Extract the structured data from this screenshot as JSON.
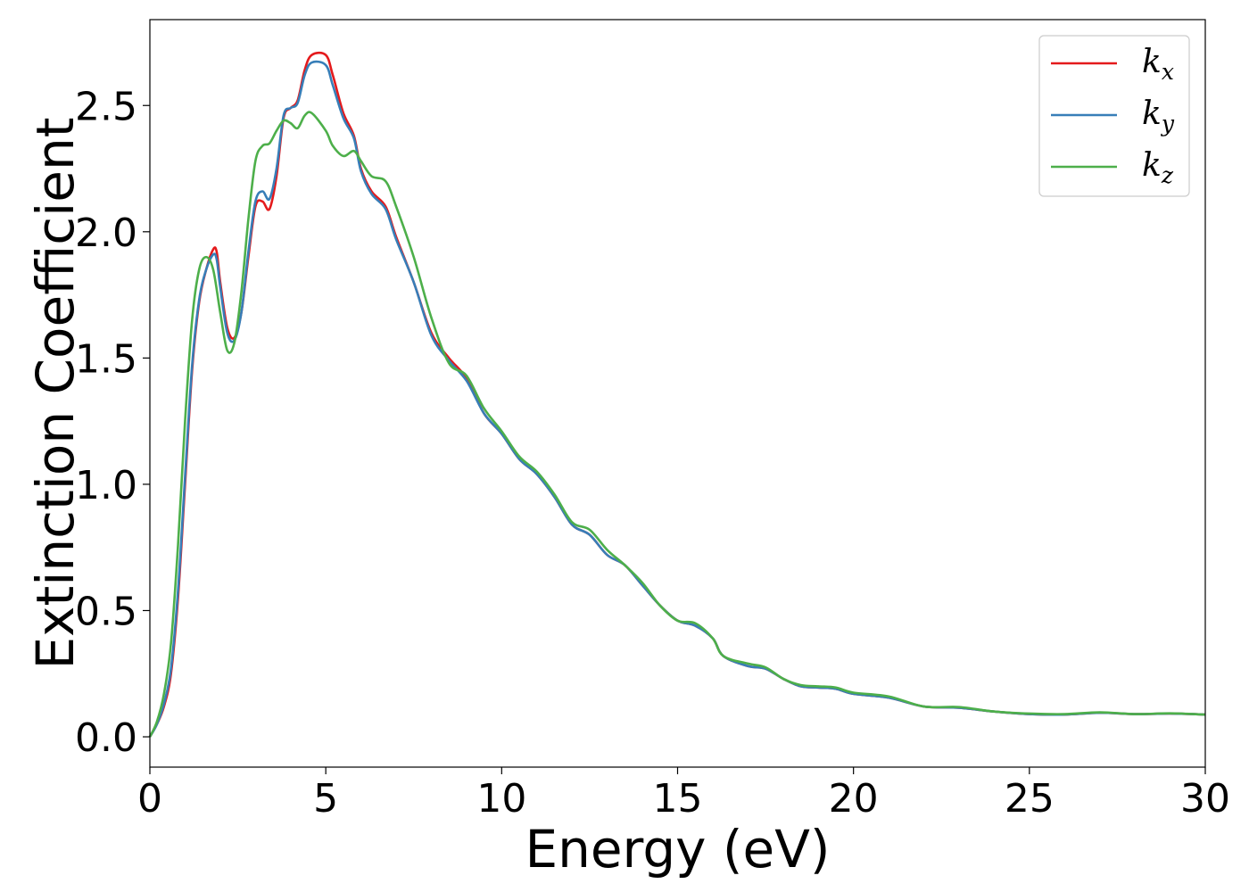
{
  "chart_data": {
    "type": "line",
    "xlabel": "Energy (eV)",
    "ylabel": "Extinction Coefficient",
    "xlim": [
      0,
      30
    ],
    "ylim": [
      -0.12,
      2.84
    ],
    "xticks": [
      0,
      5,
      10,
      15,
      20,
      25,
      30
    ],
    "yticks": [
      0.0,
      0.5,
      1.0,
      1.5,
      2.0,
      2.5
    ],
    "xtick_labels": [
      "0",
      "5",
      "10",
      "15",
      "20",
      "25",
      "30"
    ],
    "ytick_labels": [
      "0.0",
      "0.5",
      "1.0",
      "1.5",
      "2.0",
      "2.5"
    ],
    "grid": false,
    "legend_position": "top-right",
    "series": [
      {
        "name": "k_x",
        "label_main": "k",
        "label_sub": "x",
        "color": "#e41a1c",
        "points": [
          [
            0,
            0.0
          ],
          [
            0.2,
            0.05
          ],
          [
            0.4,
            0.12
          ],
          [
            0.6,
            0.25
          ],
          [
            0.8,
            0.55
          ],
          [
            1.0,
            1.0
          ],
          [
            1.2,
            1.45
          ],
          [
            1.4,
            1.72
          ],
          [
            1.6,
            1.85
          ],
          [
            1.8,
            1.93
          ],
          [
            1.9,
            1.92
          ],
          [
            2.0,
            1.8
          ],
          [
            2.2,
            1.62
          ],
          [
            2.4,
            1.58
          ],
          [
            2.6,
            1.68
          ],
          [
            2.8,
            1.9
          ],
          [
            3.0,
            2.1
          ],
          [
            3.2,
            2.12
          ],
          [
            3.4,
            2.09
          ],
          [
            3.6,
            2.22
          ],
          [
            3.8,
            2.45
          ],
          [
            4.0,
            2.49
          ],
          [
            4.2,
            2.52
          ],
          [
            4.4,
            2.64
          ],
          [
            4.6,
            2.7
          ],
          [
            5.0,
            2.7
          ],
          [
            5.2,
            2.62
          ],
          [
            5.5,
            2.47
          ],
          [
            5.8,
            2.38
          ],
          [
            6.0,
            2.25
          ],
          [
            6.3,
            2.16
          ],
          [
            6.7,
            2.1
          ],
          [
            7.0,
            1.98
          ],
          [
            7.5,
            1.8
          ],
          [
            8.0,
            1.6
          ],
          [
            8.5,
            1.5
          ],
          [
            9.0,
            1.42
          ],
          [
            9.5,
            1.28
          ],
          [
            10.0,
            1.2
          ],
          [
            10.5,
            1.1
          ],
          [
            11.0,
            1.04
          ],
          [
            11.5,
            0.95
          ],
          [
            12.0,
            0.84
          ],
          [
            12.5,
            0.8
          ],
          [
            13.0,
            0.72
          ],
          [
            13.5,
            0.68
          ],
          [
            14.0,
            0.6
          ],
          [
            14.5,
            0.52
          ],
          [
            15.0,
            0.46
          ],
          [
            15.5,
            0.44
          ],
          [
            16.0,
            0.39
          ],
          [
            16.3,
            0.32
          ],
          [
            17.0,
            0.28
          ],
          [
            17.5,
            0.27
          ],
          [
            18.0,
            0.23
          ],
          [
            18.5,
            0.2
          ],
          [
            19.0,
            0.195
          ],
          [
            19.5,
            0.19
          ],
          [
            20.0,
            0.17
          ],
          [
            21.0,
            0.155
          ],
          [
            22.0,
            0.12
          ],
          [
            23.0,
            0.115
          ],
          [
            24.0,
            0.1
          ],
          [
            25.0,
            0.09
          ],
          [
            26.0,
            0.088
          ],
          [
            27.0,
            0.095
          ],
          [
            28.0,
            0.09
          ],
          [
            29.0,
            0.092
          ],
          [
            30.0,
            0.088
          ]
        ]
      },
      {
        "name": "k_y",
        "label_main": "k",
        "label_sub": "y",
        "color": "#377eb8",
        "points": [
          [
            0,
            0.0
          ],
          [
            0.2,
            0.05
          ],
          [
            0.4,
            0.13
          ],
          [
            0.6,
            0.27
          ],
          [
            0.8,
            0.58
          ],
          [
            1.0,
            1.03
          ],
          [
            1.2,
            1.47
          ],
          [
            1.4,
            1.73
          ],
          [
            1.6,
            1.85
          ],
          [
            1.8,
            1.91
          ],
          [
            1.9,
            1.89
          ],
          [
            2.0,
            1.78
          ],
          [
            2.2,
            1.6
          ],
          [
            2.4,
            1.57
          ],
          [
            2.6,
            1.68
          ],
          [
            2.8,
            1.92
          ],
          [
            3.0,
            2.12
          ],
          [
            3.2,
            2.16
          ],
          [
            3.4,
            2.13
          ],
          [
            3.6,
            2.25
          ],
          [
            3.8,
            2.46
          ],
          [
            4.0,
            2.49
          ],
          [
            4.2,
            2.51
          ],
          [
            4.4,
            2.62
          ],
          [
            4.6,
            2.67
          ],
          [
            5.0,
            2.66
          ],
          [
            5.2,
            2.58
          ],
          [
            5.5,
            2.45
          ],
          [
            5.8,
            2.37
          ],
          [
            6.0,
            2.24
          ],
          [
            6.3,
            2.15
          ],
          [
            6.7,
            2.09
          ],
          [
            7.0,
            1.97
          ],
          [
            7.5,
            1.8
          ],
          [
            8.0,
            1.59
          ],
          [
            8.5,
            1.49
          ],
          [
            9.0,
            1.41
          ],
          [
            9.5,
            1.28
          ],
          [
            10.0,
            1.2
          ],
          [
            10.5,
            1.1
          ],
          [
            11.0,
            1.04
          ],
          [
            11.5,
            0.95
          ],
          [
            12.0,
            0.84
          ],
          [
            12.5,
            0.8
          ],
          [
            13.0,
            0.72
          ],
          [
            13.5,
            0.68
          ],
          [
            14.0,
            0.6
          ],
          [
            14.5,
            0.52
          ],
          [
            15.0,
            0.46
          ],
          [
            15.5,
            0.44
          ],
          [
            16.0,
            0.39
          ],
          [
            16.3,
            0.32
          ],
          [
            17.0,
            0.28
          ],
          [
            17.5,
            0.27
          ],
          [
            18.0,
            0.23
          ],
          [
            18.5,
            0.2
          ],
          [
            19.0,
            0.195
          ],
          [
            19.5,
            0.19
          ],
          [
            20.0,
            0.17
          ],
          [
            21.0,
            0.155
          ],
          [
            22.0,
            0.12
          ],
          [
            23.0,
            0.115
          ],
          [
            24.0,
            0.1
          ],
          [
            25.0,
            0.09
          ],
          [
            26.0,
            0.088
          ],
          [
            27.0,
            0.095
          ],
          [
            28.0,
            0.09
          ],
          [
            29.0,
            0.092
          ],
          [
            30.0,
            0.088
          ]
        ]
      },
      {
        "name": "k_z",
        "label_main": "k",
        "label_sub": "z",
        "color": "#4daf4a",
        "points": [
          [
            0,
            0.0
          ],
          [
            0.2,
            0.06
          ],
          [
            0.4,
            0.17
          ],
          [
            0.6,
            0.37
          ],
          [
            0.8,
            0.76
          ],
          [
            1.0,
            1.25
          ],
          [
            1.2,
            1.65
          ],
          [
            1.4,
            1.85
          ],
          [
            1.6,
            1.9
          ],
          [
            1.8,
            1.85
          ],
          [
            2.0,
            1.68
          ],
          [
            2.2,
            1.53
          ],
          [
            2.4,
            1.56
          ],
          [
            2.6,
            1.76
          ],
          [
            2.8,
            2.05
          ],
          [
            3.0,
            2.28
          ],
          [
            3.2,
            2.34
          ],
          [
            3.4,
            2.35
          ],
          [
            3.6,
            2.4
          ],
          [
            3.8,
            2.44
          ],
          [
            4.0,
            2.43
          ],
          [
            4.2,
            2.41
          ],
          [
            4.4,
            2.46
          ],
          [
            4.6,
            2.47
          ],
          [
            5.0,
            2.4
          ],
          [
            5.2,
            2.34
          ],
          [
            5.5,
            2.3
          ],
          [
            5.8,
            2.32
          ],
          [
            6.0,
            2.28
          ],
          [
            6.3,
            2.22
          ],
          [
            6.7,
            2.2
          ],
          [
            7.0,
            2.1
          ],
          [
            7.5,
            1.9
          ],
          [
            8.0,
            1.66
          ],
          [
            8.5,
            1.48
          ],
          [
            9.0,
            1.43
          ],
          [
            9.5,
            1.3
          ],
          [
            10.0,
            1.21
          ],
          [
            10.5,
            1.11
          ],
          [
            11.0,
            1.05
          ],
          [
            11.5,
            0.96
          ],
          [
            12.0,
            0.85
          ],
          [
            12.5,
            0.82
          ],
          [
            13.0,
            0.74
          ],
          [
            13.5,
            0.68
          ],
          [
            14.0,
            0.61
          ],
          [
            14.5,
            0.52
          ],
          [
            15.0,
            0.46
          ],
          [
            15.5,
            0.45
          ],
          [
            16.0,
            0.39
          ],
          [
            16.3,
            0.32
          ],
          [
            17.0,
            0.29
          ],
          [
            17.5,
            0.275
          ],
          [
            18.0,
            0.23
          ],
          [
            18.5,
            0.205
          ],
          [
            19.0,
            0.2
          ],
          [
            19.5,
            0.195
          ],
          [
            20.0,
            0.175
          ],
          [
            21.0,
            0.16
          ],
          [
            22.0,
            0.12
          ],
          [
            23.0,
            0.118
          ],
          [
            24.0,
            0.1
          ],
          [
            25.0,
            0.092
          ],
          [
            26.0,
            0.09
          ],
          [
            27.0,
            0.097
          ],
          [
            28.0,
            0.09
          ],
          [
            29.0,
            0.093
          ],
          [
            30.0,
            0.088
          ]
        ]
      }
    ]
  }
}
